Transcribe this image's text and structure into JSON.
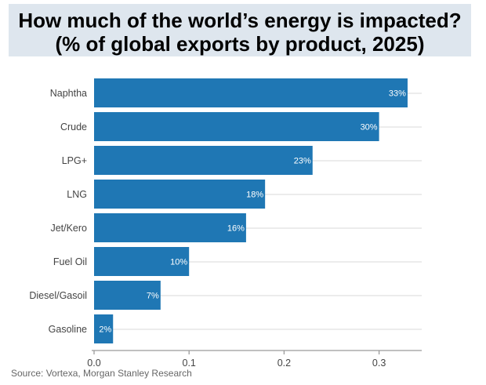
{
  "title_box": {
    "line1": "How much of the world’s energy is impacted?",
    "line2": "(% of global exports by product, 2025)"
  },
  "source": "Source: Vortexa, Morgan Stanley Research",
  "colors": {
    "bar": "#1f77b4",
    "grid": "#d9d9d9",
    "axis": "#9a9a9a",
    "title_background": "#dee6ee"
  },
  "chart_data": {
    "type": "bar",
    "orientation": "horizontal",
    "categories": [
      "Naphtha",
      "Crude",
      "LPG+",
      "LNG",
      "Jet/Kero",
      "Fuel Oil",
      "Diesel/Gasoil",
      "Gasoline"
    ],
    "values": [
      0.33,
      0.3,
      0.23,
      0.18,
      0.16,
      0.1,
      0.07,
      0.02
    ],
    "data_labels": [
      "33%",
      "30%",
      "23%",
      "18%",
      "16%",
      "10%",
      "7%",
      "2%"
    ],
    "x_ticks": [
      0.0,
      0.1,
      0.2,
      0.3
    ],
    "x_tick_labels": [
      "0.0",
      "0.1",
      "0.2",
      "0.3"
    ],
    "xlim": [
      0,
      0.34
    ],
    "grid": true,
    "legend": "none"
  }
}
